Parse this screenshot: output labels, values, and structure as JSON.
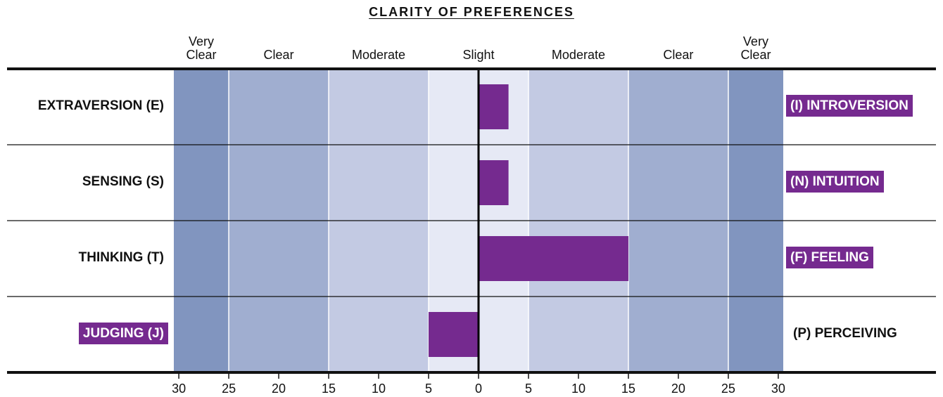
{
  "chart_data": {
    "type": "diverging_bar",
    "title": "CLARITY OF PREFERENCES",
    "categories": [
      "EXTRAVERSION (E)",
      "SENSING (S)",
      "THINKING (T)",
      "JUDGING (J)"
    ],
    "right_categories": [
      "(I) INTROVERSION",
      "(N) INTUITION",
      "(F) FEELING",
      "(P) PERCEIVING"
    ],
    "values": [
      3,
      3,
      15,
      -5
    ],
    "color": "#752a8f",
    "zones": [
      {
        "label": "Very Clear",
        "start": -30.5,
        "end": -25,
        "color": "#8195bf"
      },
      {
        "label": "Clear",
        "start": -25,
        "end": -15,
        "color": "#a0aed0"
      },
      {
        "label": "Moderate",
        "start": -15,
        "end": -5,
        "color": "#c3cae3"
      },
      {
        "label": "Slight",
        "start": -5,
        "end": 5,
        "color": "#e6e9f5"
      },
      {
        "label": "Moderate",
        "start": 5,
        "end": 15,
        "color": "#c3cae3"
      },
      {
        "label": "Clear",
        "start": 15,
        "end": 25,
        "color": "#a0aed0"
      },
      {
        "label": "Very Clear",
        "start": 25,
        "end": 30.5,
        "color": "#8195bf"
      }
    ],
    "xlim": [
      -30.5,
      30.5
    ],
    "xticks": [
      {
        "value": -30,
        "label": "30"
      },
      {
        "value": -25,
        "label": "25"
      },
      {
        "value": -20,
        "label": "20"
      },
      {
        "value": -15,
        "label": "15"
      },
      {
        "value": -10,
        "label": "10"
      },
      {
        "value": -5,
        "label": "5"
      },
      0,
      5,
      10,
      15,
      20,
      25,
      30
    ]
  }
}
